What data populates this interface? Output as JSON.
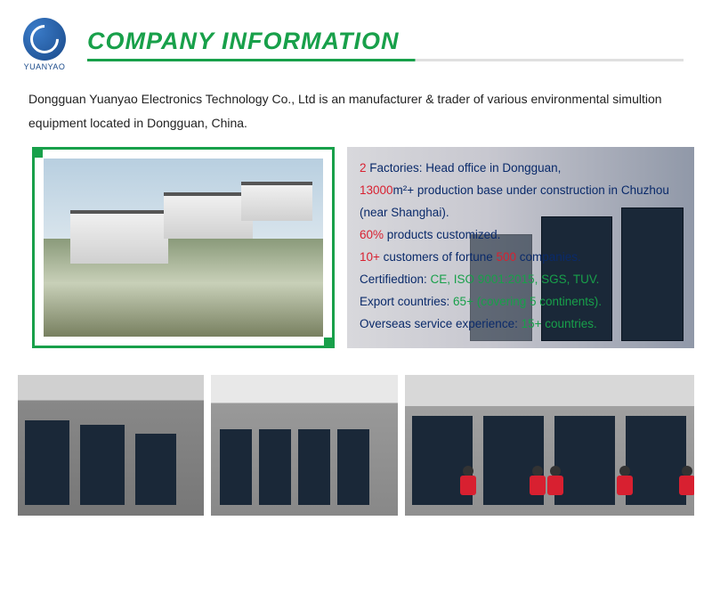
{
  "colors": {
    "brand_green": "#18a04a",
    "brand_blue": "#1a4a8a",
    "text_black": "#222222",
    "text_blue": "#0a2a6a",
    "highlight_red": "#d82030"
  },
  "logo": {
    "text": "YUANYAO"
  },
  "header": {
    "title": "COMPANY INFORMATION"
  },
  "intro": {
    "text": "Dongguan Yuanyao Electronics Technology Co., Ltd  is an manufacturer & trader of various environmental simultion equipment located in Dongguan, China."
  },
  "stats": {
    "line1": {
      "num": "2",
      "rest": " Factories: Head office in Dongguan,"
    },
    "line2": {
      "num": "13000",
      "rest": "m²+ production base under construction in Chuzhou"
    },
    "line3": {
      "text": "(near Shanghai)."
    },
    "line4": {
      "num": "60%",
      "rest": " products customized."
    },
    "line5": {
      "num": "10+",
      "mid": " customers of fortune ",
      "num2": "500",
      "rest": " companies."
    },
    "line6": {
      "label": "Certifiedtion: ",
      "val": "CE, ISO 9001:2015, SGS, TUV."
    },
    "line7": {
      "label": "Export countries: ",
      "val": "65+ (covering 5 continents)."
    },
    "line8": {
      "label": "Overseas service experience: ",
      "val": "15+ countries."
    }
  }
}
